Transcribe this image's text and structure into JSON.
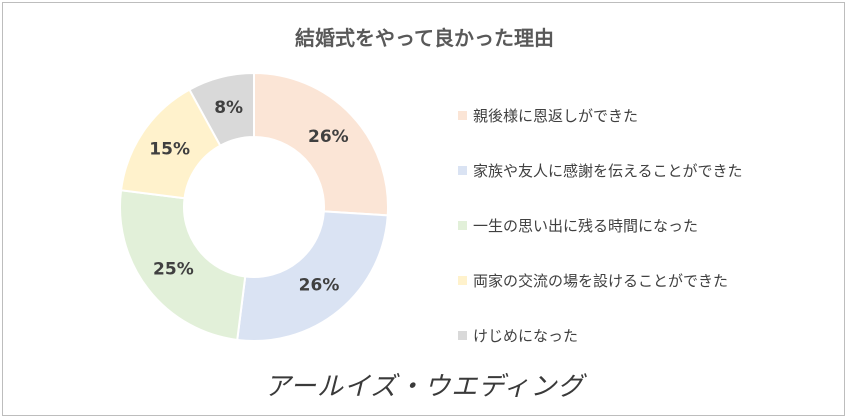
{
  "chart_data": {
    "type": "pie",
    "title": "結婚式をやって良かった理由",
    "legend_position": "right",
    "categories": [
      "親後様に恩返しができた",
      "家族や友人に感謝を伝えることができた",
      "一生の思い出に残る時間になった",
      "両家の交流の場を設けることができた",
      "けじめになった"
    ],
    "values": [
      26,
      26,
      25,
      15,
      8
    ],
    "value_labels": [
      "26%",
      "26%",
      "25%",
      "15%",
      "8%"
    ],
    "colors": [
      "#fbe5d6",
      "#dae3f3",
      "#e2f0d9",
      "#fff2cc",
      "#d9d9d9"
    ]
  },
  "brand": {
    "logo_text": "アールイズ・ウエディング"
  }
}
